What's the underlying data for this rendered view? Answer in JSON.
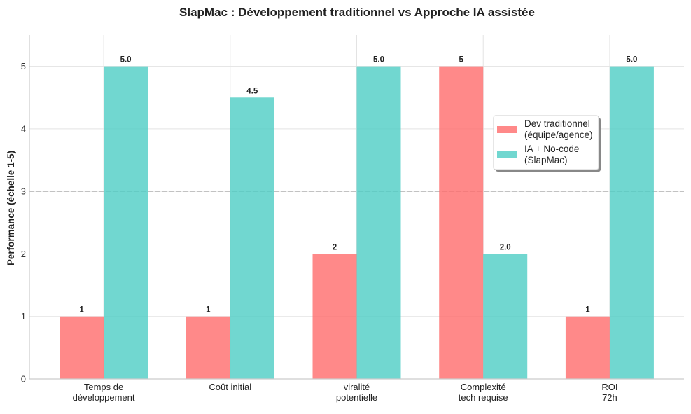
{
  "chart_data": {
    "type": "bar",
    "title": "SlapMac : Développement traditionnel vs Approche IA assistée",
    "xlabel": "",
    "ylabel": "Performance (échelle 1-5)",
    "ylim": [
      0,
      5.5
    ],
    "yticks": [
      "0",
      "1",
      "2",
      "3",
      "4",
      "5"
    ],
    "grid": true,
    "reference_line": {
      "y": 3,
      "style": "dashed",
      "color": "#999999"
    },
    "legend_position": "top-right",
    "categories": [
      [
        "Temps de",
        "développement"
      ],
      [
        "Coût initial"
      ],
      [
        "viralité",
        "potentielle"
      ],
      [
        "Complexité",
        "tech requise"
      ],
      [
        "ROI",
        "72h"
      ]
    ],
    "series": [
      {
        "name": [
          "Dev traditionnel",
          "(équipe/agence)"
        ],
        "color": "#FF6B6B",
        "values": [
          1,
          1,
          2,
          5,
          1
        ],
        "labels": [
          "1",
          "1",
          "2",
          "5",
          "1"
        ]
      },
      {
        "name": [
          "IA + No-code",
          "(SlapMac)"
        ],
        "color": "#4ECDC4",
        "values": [
          5.0,
          4.5,
          5.0,
          2.0,
          5.0
        ],
        "labels": [
          "5.0",
          "4.5",
          "5.0",
          "2.0",
          "5.0"
        ]
      }
    ]
  }
}
